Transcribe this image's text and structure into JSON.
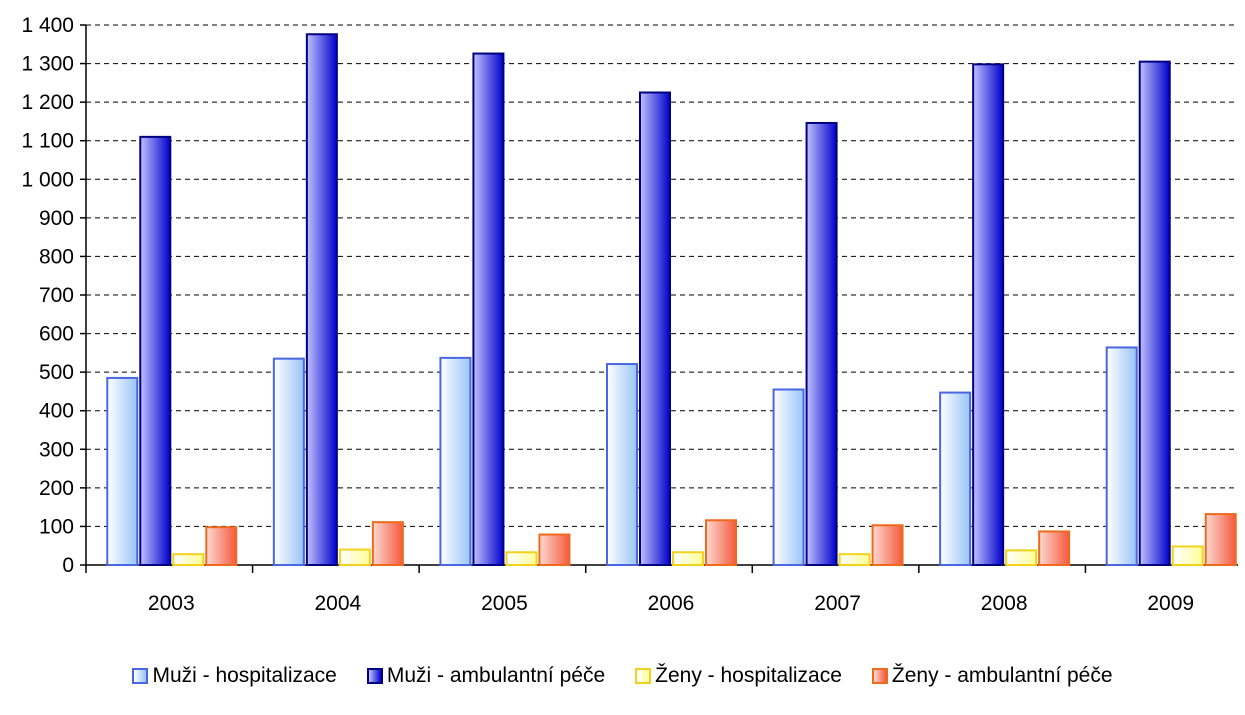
{
  "chart_data": {
    "type": "bar",
    "categories": [
      "2003",
      "2004",
      "2005",
      "2006",
      "2007",
      "2008",
      "2009"
    ],
    "ylim": [
      0,
      1400
    ],
    "yticks": [
      0,
      100,
      200,
      300,
      400,
      500,
      600,
      700,
      800,
      900,
      1000,
      1100,
      1200,
      1300,
      1400
    ],
    "ytick_labels": [
      "0",
      "100",
      "200",
      "300",
      "400",
      "500",
      "600",
      "700",
      "800",
      "900",
      "1 000",
      "1 100",
      "1 200",
      "1 300",
      "1 400"
    ],
    "grid": true,
    "legend_position": "bottom",
    "series": [
      {
        "name": "Muži - hospitalizace",
        "values": [
          485,
          535,
          537,
          521,
          455,
          447,
          564
        ],
        "color_light": "#ffffff",
        "color_dark": "#99c4f7",
        "border": "#4a66e0"
      },
      {
        "name": "Muži - ambulantní péče",
        "values": [
          1110,
          1376,
          1326,
          1225,
          1146,
          1298,
          1305
        ],
        "color_light": "#c2c2ff",
        "color_dark": "#0000cc",
        "border": "#000080"
      },
      {
        "name": "Ženy - hospitalizace",
        "values": [
          28,
          40,
          33,
          33,
          28,
          38,
          48
        ],
        "color_light": "#ffffff",
        "color_dark": "#ffff99",
        "border": "#f2d21a"
      },
      {
        "name": "Ženy - ambulantní péče",
        "values": [
          98,
          111,
          79,
          116,
          103,
          87,
          132
        ],
        "color_light": "#fdd9d2",
        "color_dark": "#f45a3c",
        "border": "#ee6a1c"
      }
    ]
  }
}
